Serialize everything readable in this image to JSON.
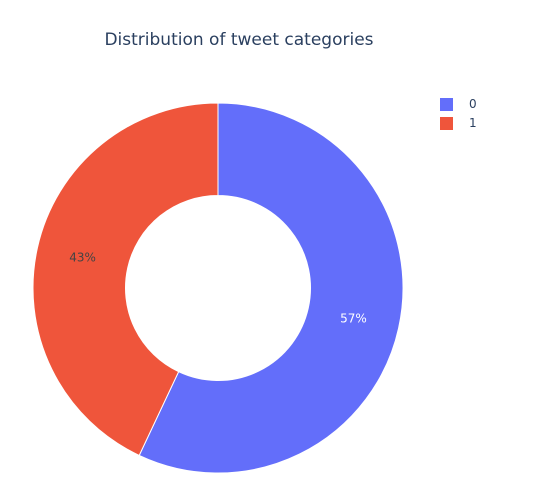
{
  "chart_data": {
    "type": "pie",
    "title": "Distribution of tweet categories",
    "hole": 0.5,
    "labels": [
      "0",
      "1"
    ],
    "values": [
      57,
      43
    ],
    "percent_labels": [
      "57%",
      "43%"
    ],
    "colors": [
      "#636efa",
      "#ef553b"
    ],
    "label_text_colors": [
      "#ffffff",
      "#444444"
    ],
    "direction": "clockwise",
    "rotation_start": "top",
    "legend_position": "top-right"
  },
  "legend": {
    "items": [
      {
        "label": "0",
        "color": "#636efa"
      },
      {
        "label": "1",
        "color": "#ef553b"
      }
    ]
  }
}
